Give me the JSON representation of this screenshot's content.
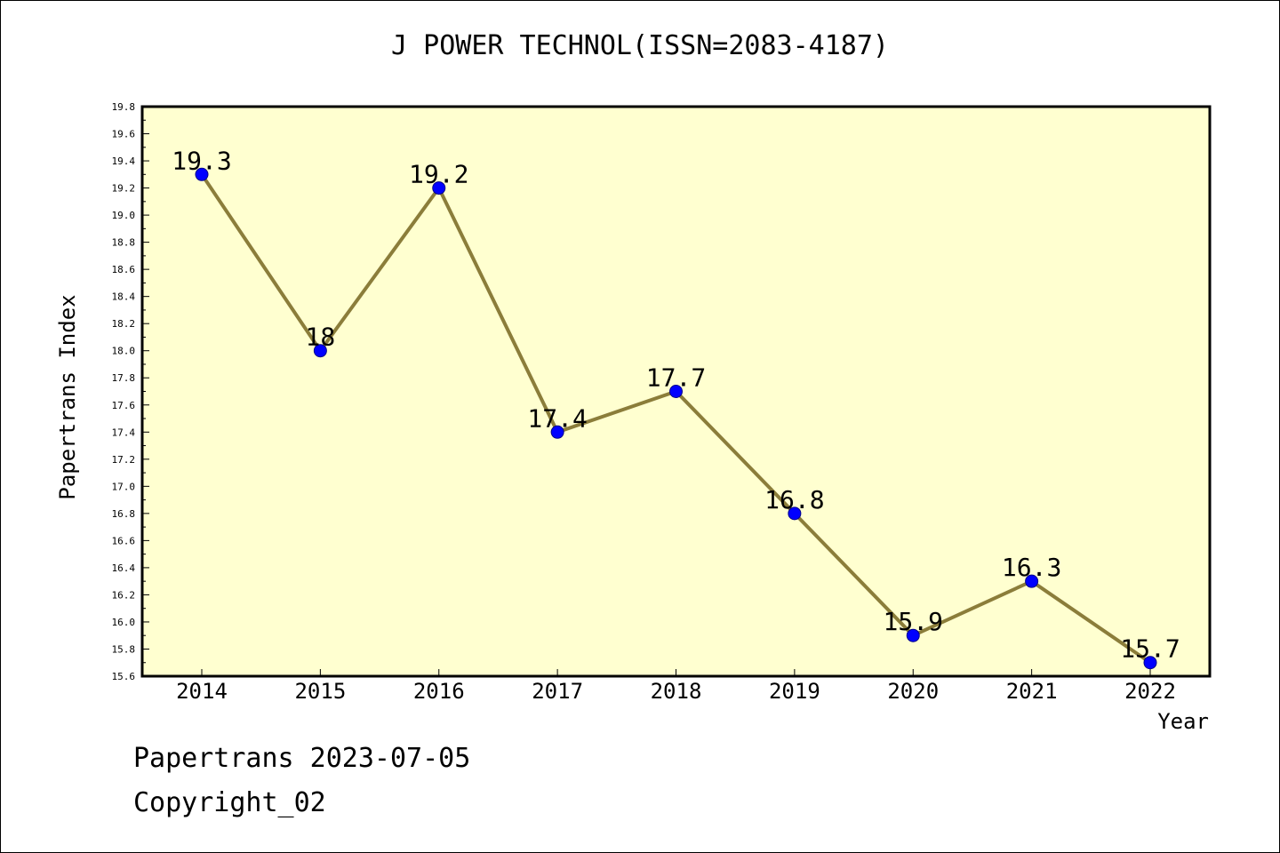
{
  "chart_data": {
    "type": "line",
    "title": "J POWER TECHNOL(ISSN=2083-4187)",
    "xlabel": "Year",
    "ylabel": "Papertrans Index",
    "x": [
      "2014",
      "2015",
      "2016",
      "2017",
      "2018",
      "2019",
      "2020",
      "2021",
      "2022"
    ],
    "values": [
      19.3,
      18,
      19.2,
      17.4,
      17.7,
      16.8,
      15.9,
      16.3,
      15.7
    ],
    "point_labels": [
      "19.3",
      "18",
      "19.2",
      "17.4",
      "17.7",
      "16.8",
      "15.9",
      "16.3",
      "15.7"
    ],
    "ylim": [
      15.6,
      19.8
    ],
    "yticks": [
      "15.6",
      "15.8",
      "16.0",
      "16.2",
      "16.4",
      "16.6",
      "16.8",
      "17.0",
      "17.2",
      "17.4",
      "17.6",
      "17.8",
      "18.0",
      "18.2",
      "18.4",
      "18.6",
      "18.8",
      "19.0",
      "19.2",
      "19.4",
      "19.6",
      "19.8"
    ],
    "grid": false,
    "colors": {
      "plot_background": "#ffffd0",
      "line": "#8b7d3a",
      "marker": "#0000ff"
    }
  },
  "footer": {
    "line1": "Papertrans 2023-07-05",
    "line2": "Copyright_02"
  }
}
